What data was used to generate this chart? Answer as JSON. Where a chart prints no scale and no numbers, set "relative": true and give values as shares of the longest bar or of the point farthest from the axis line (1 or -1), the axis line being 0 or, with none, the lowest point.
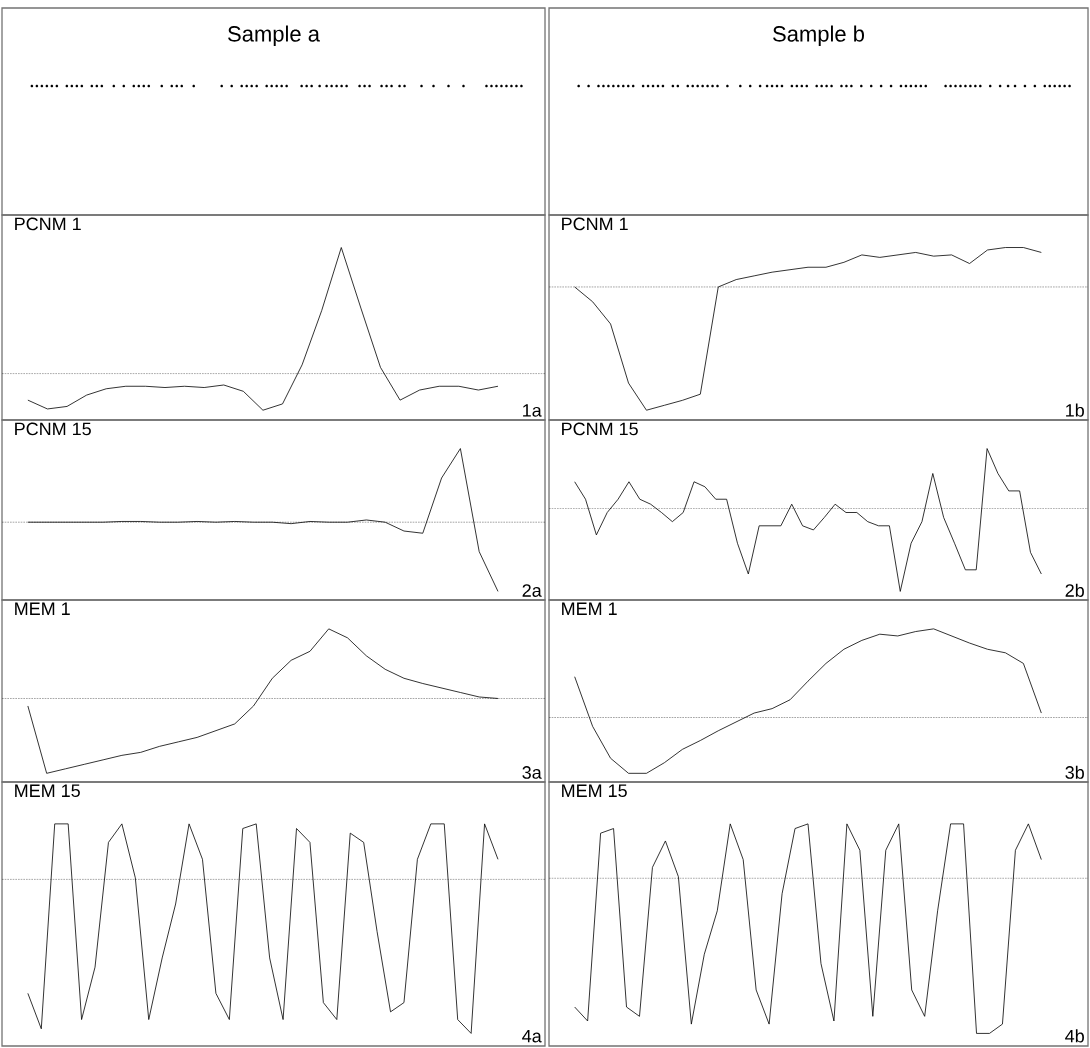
{
  "chart_data": [
    {
      "type": "other",
      "title": "Sample a"
    },
    {
      "type": "other",
      "title": "Sample b"
    },
    {
      "type": "line",
      "title": "PCNM 1",
      "relative": true,
      "tick_labels": false,
      "annotations": [
        "1a"
      ],
      "ref_lines": [
        {
          "axis": "y",
          "value": 0,
          "line_style": "dotted"
        }
      ],
      "categories": [
        null,
        null,
        null,
        null,
        null,
        null,
        null,
        null,
        null,
        null,
        null,
        null,
        null,
        null,
        null,
        null,
        null,
        null,
        null,
        null,
        null,
        null,
        null,
        null,
        null
      ],
      "series": [
        {
          "color": "#000000",
          "values": [
            -0.21,
            -0.28,
            -0.26,
            -0.17,
            -0.12,
            -0.1,
            -0.1,
            -0.11,
            -0.1,
            -0.11,
            -0.09,
            -0.14,
            -0.29,
            -0.24,
            0.07,
            0.5,
            1,
            0.52,
            0.05,
            -0.21,
            -0.13,
            -0.1,
            -0.1,
            -0.13,
            -0.1
          ]
        }
      ]
    },
    {
      "type": "line",
      "title": "PCNM 1",
      "relative": true,
      "tick_labels": false,
      "annotations": [
        "1b"
      ],
      "ref_lines": [
        {
          "axis": "y",
          "value": 0,
          "line_style": "dotted"
        }
      ],
      "categories": [
        null,
        null,
        null,
        null,
        null,
        null,
        null,
        null,
        null,
        null,
        null,
        null,
        null,
        null,
        null,
        null,
        null,
        null,
        null,
        null,
        null,
        null,
        null,
        null,
        null,
        null,
        null
      ],
      "series": [
        {
          "color": "#000000",
          "values": [
            0,
            -0.12,
            -0.3,
            -0.78,
            -1,
            -0.96,
            -0.92,
            -0.87,
            0,
            0.06,
            0.09,
            0.12,
            0.14,
            0.16,
            0.16,
            0.2,
            0.26,
            0.24,
            0.26,
            0.28,
            0.25,
            0.26,
            0.19,
            0.3,
            0.32,
            0.32,
            0.28
          ]
        }
      ]
    },
    {
      "type": "line",
      "title": "PCNM 15",
      "relative": true,
      "tick_labels": false,
      "annotations": [
        "2a"
      ],
      "ref_lines": [
        {
          "axis": "y",
          "value": 0,
          "line_style": "dotted"
        }
      ],
      "categories": [
        null,
        null,
        null,
        null,
        null,
        null,
        null,
        null,
        null,
        null,
        null,
        null,
        null,
        null,
        null,
        null,
        null,
        null,
        null,
        null,
        null,
        null,
        null,
        null,
        null,
        null
      ],
      "series": [
        {
          "color": "#000000",
          "values": [
            0,
            0,
            0,
            0,
            0,
            0.01,
            0.01,
            0,
            0,
            0.01,
            0,
            0.01,
            0,
            0,
            -0.02,
            0.01,
            0,
            0,
            0.03,
            0,
            -0.12,
            -0.15,
            0.6,
            1,
            -0.4,
            -0.94
          ]
        }
      ]
    },
    {
      "type": "line",
      "title": "PCNM 15",
      "relative": true,
      "tick_labels": false,
      "annotations": [
        "2b"
      ],
      "ref_lines": [
        {
          "axis": "y",
          "value": 0,
          "line_style": "dotted"
        }
      ],
      "categories": [
        null,
        null,
        null,
        null,
        null,
        null,
        null,
        null,
        null,
        null,
        null,
        null,
        null,
        null,
        null,
        null,
        null,
        null,
        null,
        null,
        null,
        null,
        null,
        null,
        null,
        null,
        null,
        null,
        null,
        null,
        null,
        null,
        null,
        null,
        null,
        null,
        null,
        null,
        null,
        null,
        null,
        null,
        null,
        null
      ],
      "series": [
        {
          "color": "#000000",
          "values": [
            0.32,
            0.11,
            -0.32,
            -0.05,
            0.11,
            0.32,
            0.11,
            0.05,
            -0.05,
            -0.16,
            -0.05,
            0.32,
            0.26,
            0.11,
            0.11,
            -0.42,
            -0.79,
            -0.21,
            -0.21,
            -0.21,
            0.05,
            -0.21,
            -0.26,
            -0.11,
            0.05,
            -0.05,
            -0.05,
            -0.16,
            -0.21,
            -0.21,
            -1,
            -0.42,
            -0.16,
            0.42,
            -0.11,
            -0.42,
            -0.74,
            -0.74,
            0.72,
            0.42,
            0.21,
            0.21,
            -0.53,
            -0.79
          ]
        }
      ]
    },
    {
      "type": "line",
      "title": "MEM 1",
      "relative": true,
      "tick_labels": false,
      "annotations": [
        "3a"
      ],
      "ref_lines": [
        {
          "axis": "y",
          "value": 0,
          "line_style": "dotted"
        }
      ],
      "categories": [
        null,
        null,
        null,
        null,
        null,
        null,
        null,
        null,
        null,
        null,
        null,
        null,
        null,
        null,
        null,
        null,
        null,
        null,
        null,
        null,
        null,
        null,
        null,
        null,
        null,
        null
      ],
      "series": [
        {
          "color": "#000000",
          "values": [
            -0.1,
            -1,
            -0.94,
            -0.88,
            -0.82,
            -0.76,
            -0.72,
            -0.64,
            -0.58,
            -0.52,
            -0.43,
            -0.34,
            -0.1,
            0.27,
            0.51,
            0.63,
            0.93,
            0.81,
            0.57,
            0.39,
            0.27,
            0.2,
            0.14,
            0.08,
            0.02,
            0
          ]
        }
      ]
    },
    {
      "type": "line",
      "title": "MEM 1",
      "relative": true,
      "tick_labels": false,
      "annotations": [
        "3b"
      ],
      "ref_lines": [
        {
          "axis": "y",
          "value": 0,
          "line_style": "dotted"
        }
      ],
      "categories": [
        null,
        null,
        null,
        null,
        null,
        null,
        null,
        null,
        null,
        null,
        null,
        null,
        null,
        null,
        null,
        null,
        null,
        null,
        null,
        null,
        null,
        null,
        null,
        null,
        null,
        null,
        null
      ],
      "series": [
        {
          "color": "#000000",
          "values": [
            0.46,
            -0.1,
            -0.46,
            -0.63,
            -0.63,
            -0.51,
            -0.36,
            -0.26,
            -0.15,
            -0.05,
            0.05,
            0.1,
            0.2,
            0.41,
            0.61,
            0.77,
            0.87,
            0.94,
            0.92,
            0.97,
            1,
            0.92,
            0.84,
            0.77,
            0.73,
            0.61,
            0.05
          ]
        }
      ]
    },
    {
      "type": "line",
      "title": "MEM 15",
      "relative": true,
      "tick_labels": false,
      "annotations": [
        "4a"
      ],
      "ref_lines": [
        {
          "axis": "y",
          "value": 0,
          "line_style": "dotted"
        }
      ],
      "categories": [
        null,
        null,
        null,
        null,
        null,
        null,
        null,
        null,
        null,
        null,
        null,
        null,
        null,
        null,
        null,
        null,
        null,
        null,
        null,
        null,
        null,
        null,
        null,
        null,
        null,
        null,
        null,
        null,
        null,
        null,
        null,
        null,
        null,
        null,
        null,
        null
      ],
      "series": [
        {
          "color": "#000000",
          "values": [
            -0.74,
            -0.97,
            0.36,
            0.36,
            -0.91,
            -0.57,
            0.24,
            0.36,
            0.01,
            -0.91,
            -0.51,
            -0.16,
            0.36,
            0.13,
            -0.74,
            -0.91,
            0.33,
            0.36,
            -0.51,
            -0.91,
            0.33,
            0.24,
            -0.8,
            -0.91,
            0.3,
            0.24,
            -0.34,
            -0.86,
            -0.8,
            0.13,
            0.36,
            0.36,
            -0.91,
            -1,
            0.36,
            0.13
          ]
        }
      ]
    },
    {
      "type": "line",
      "title": "MEM 15",
      "relative": true,
      "tick_labels": false,
      "annotations": [
        "4b"
      ],
      "ref_lines": [
        {
          "axis": "y",
          "value": 0,
          "line_style": "dotted"
        }
      ],
      "categories": [
        null,
        null,
        null,
        null,
        null,
        null,
        null,
        null,
        null,
        null,
        null,
        null,
        null,
        null,
        null,
        null,
        null,
        null,
        null,
        null,
        null,
        null,
        null,
        null,
        null,
        null,
        null,
        null,
        null,
        null,
        null,
        null,
        null,
        null,
        null,
        null,
        null
      ],
      "series": [
        {
          "color": "#000000",
          "values": [
            -0.83,
            -0.92,
            0.29,
            0.32,
            -0.83,
            -0.89,
            0.07,
            0.24,
            0.01,
            -0.94,
            -0.49,
            -0.21,
            0.35,
            0.12,
            -0.72,
            -0.94,
            -0.1,
            0.32,
            0.35,
            -0.55,
            -0.92,
            0.35,
            0.18,
            -0.89,
            0.18,
            0.35,
            -0.72,
            -0.89,
            -0.21,
            0.35,
            0.35,
            -1,
            -1,
            -0.94,
            0.18,
            0.35,
            0.12
          ]
        }
      ]
    }
  ]
}
